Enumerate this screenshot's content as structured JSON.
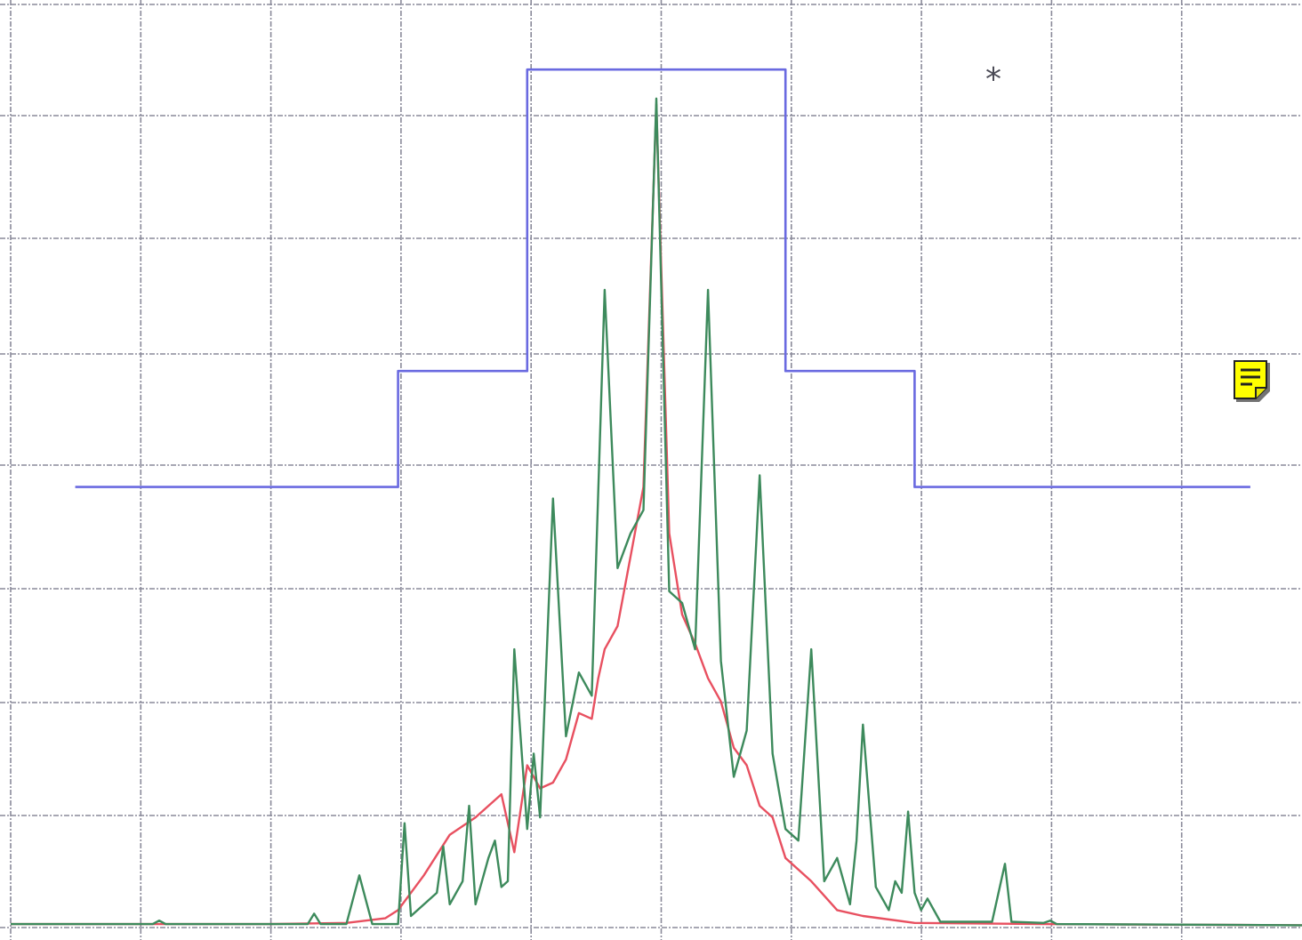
{
  "chart_data": {
    "type": "line",
    "title": "",
    "xlabel": "",
    "ylabel": "",
    "xlim": [
      0,
      10
    ],
    "ylim": [
      0,
      8
    ],
    "grid": true,
    "annotations": [
      {
        "text": "*",
        "x": 7.6,
        "y": 7.4
      },
      {
        "icon": "sticky-note-icon",
        "x": 9.7,
        "y": 4.9
      }
    ],
    "series": [
      {
        "color": "#6a6ae0",
        "step": true,
        "points": [
          [
            0.5,
            3.8
          ],
          [
            3.0,
            3.8
          ],
          [
            3.0,
            4.8
          ],
          [
            4.0,
            4.8
          ],
          [
            4.0,
            7.4
          ],
          [
            6.0,
            7.4
          ],
          [
            6.0,
            4.8
          ],
          [
            7.0,
            4.8
          ],
          [
            7.0,
            3.8
          ],
          [
            9.6,
            3.8
          ]
        ]
      },
      {
        "color": "#e85060",
        "points": [
          [
            0.0,
            0.03
          ],
          [
            2.0,
            0.03
          ],
          [
            2.6,
            0.04
          ],
          [
            2.9,
            0.08
          ],
          [
            3.0,
            0.15
          ],
          [
            3.2,
            0.45
          ],
          [
            3.4,
            0.8
          ],
          [
            3.6,
            0.95
          ],
          [
            3.8,
            1.15
          ],
          [
            3.9,
            0.65
          ],
          [
            4.0,
            1.4
          ],
          [
            4.1,
            1.2
          ],
          [
            4.2,
            1.25
          ],
          [
            4.3,
            1.45
          ],
          [
            4.4,
            1.85
          ],
          [
            4.5,
            1.8
          ],
          [
            4.55,
            2.15
          ],
          [
            4.6,
            2.4
          ],
          [
            4.7,
            2.6
          ],
          [
            4.8,
            3.2
          ],
          [
            4.9,
            3.8
          ],
          [
            5.0,
            7.1
          ],
          [
            5.1,
            3.4
          ],
          [
            5.2,
            2.7
          ],
          [
            5.3,
            2.45
          ],
          [
            5.4,
            2.15
          ],
          [
            5.5,
            1.95
          ],
          [
            5.6,
            1.55
          ],
          [
            5.7,
            1.4
          ],
          [
            5.8,
            1.05
          ],
          [
            5.9,
            0.95
          ],
          [
            6.0,
            0.6
          ],
          [
            6.2,
            0.4
          ],
          [
            6.4,
            0.15
          ],
          [
            6.6,
            0.1
          ],
          [
            7.0,
            0.04
          ],
          [
            8.0,
            0.03
          ],
          [
            10.0,
            0.02
          ]
        ]
      },
      {
        "color": "#3d8a5c",
        "points": [
          [
            0.0,
            0.03
          ],
          [
            1.1,
            0.03
          ],
          [
            1.15,
            0.06
          ],
          [
            1.2,
            0.03
          ],
          [
            2.3,
            0.03
          ],
          [
            2.35,
            0.12
          ],
          [
            2.4,
            0.03
          ],
          [
            2.6,
            0.03
          ],
          [
            2.7,
            0.45
          ],
          [
            2.8,
            0.03
          ],
          [
            3.0,
            0.03
          ],
          [
            3.05,
            0.9
          ],
          [
            3.1,
            0.1
          ],
          [
            3.3,
            0.3
          ],
          [
            3.35,
            0.7
          ],
          [
            3.4,
            0.2
          ],
          [
            3.5,
            0.4
          ],
          [
            3.55,
            1.05
          ],
          [
            3.6,
            0.2
          ],
          [
            3.7,
            0.6
          ],
          [
            3.75,
            0.75
          ],
          [
            3.8,
            0.35
          ],
          [
            3.85,
            0.4
          ],
          [
            3.9,
            2.4
          ],
          [
            4.0,
            0.85
          ],
          [
            4.05,
            1.5
          ],
          [
            4.1,
            0.95
          ],
          [
            4.2,
            3.7
          ],
          [
            4.3,
            1.65
          ],
          [
            4.4,
            2.2
          ],
          [
            4.5,
            2.0
          ],
          [
            4.6,
            5.5
          ],
          [
            4.7,
            3.1
          ],
          [
            4.8,
            3.4
          ],
          [
            4.9,
            3.6
          ],
          [
            5.0,
            7.15
          ],
          [
            5.1,
            2.9
          ],
          [
            5.2,
            2.8
          ],
          [
            5.3,
            2.4
          ],
          [
            5.4,
            5.5
          ],
          [
            5.5,
            2.3
          ],
          [
            5.6,
            1.3
          ],
          [
            5.7,
            1.7
          ],
          [
            5.8,
            3.9
          ],
          [
            5.9,
            1.5
          ],
          [
            6.0,
            0.85
          ],
          [
            6.1,
            0.75
          ],
          [
            6.2,
            2.4
          ],
          [
            6.3,
            0.4
          ],
          [
            6.4,
            0.6
          ],
          [
            6.5,
            0.2
          ],
          [
            6.55,
            0.75
          ],
          [
            6.6,
            1.75
          ],
          [
            6.7,
            0.35
          ],
          [
            6.8,
            0.15
          ],
          [
            6.85,
            0.4
          ],
          [
            6.9,
            0.3
          ],
          [
            6.95,
            1.0
          ],
          [
            7.0,
            0.3
          ],
          [
            7.05,
            0.15
          ],
          [
            7.1,
            0.25
          ],
          [
            7.2,
            0.05
          ],
          [
            7.6,
            0.05
          ],
          [
            7.7,
            0.55
          ],
          [
            7.75,
            0.05
          ],
          [
            8.0,
            0.04
          ],
          [
            8.05,
            0.06
          ],
          [
            8.1,
            0.03
          ],
          [
            10.0,
            0.02
          ]
        ]
      }
    ]
  }
}
